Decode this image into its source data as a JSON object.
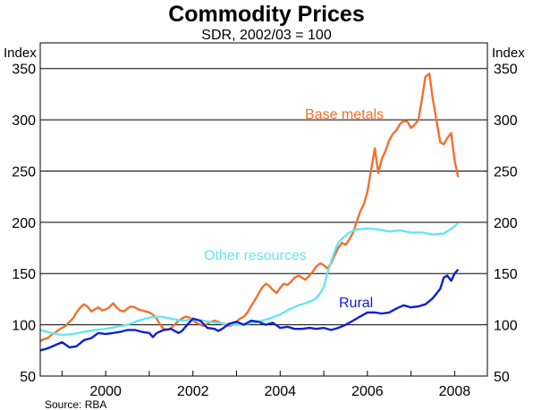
{
  "chart_data": {
    "type": "line",
    "title": "Commodity Prices",
    "subtitle": "SDR, 2002/03 = 100",
    "ylabel_left": "Index",
    "ylabel_right": "Index",
    "source": "Source: RBA",
    "xlim": [
      1998.5,
      2008.75
    ],
    "ylim": [
      50,
      375
    ],
    "y_ticks": [
      50,
      100,
      150,
      200,
      250,
      300,
      350
    ],
    "y_tick_labels": [
      "50",
      "100",
      "150",
      "200",
      "250",
      "300",
      "350"
    ],
    "x_ticks": [
      2000,
      2002,
      2004,
      2006,
      2008
    ],
    "x_tick_labels": [
      "2000",
      "2002",
      "2004",
      "2006",
      "2008"
    ],
    "gridlines": "horizontal",
    "series": [
      {
        "name": "Base metals",
        "color": "#f07030",
        "x": [
          1998.5,
          1998.58,
          1998.67,
          1998.75,
          1998.83,
          1998.92,
          1999.0,
          1999.08,
          1999.17,
          1999.25,
          1999.33,
          1999.42,
          1999.5,
          1999.58,
          1999.67,
          1999.75,
          1999.83,
          1999.92,
          2000.0,
          2000.08,
          2000.17,
          2000.25,
          2000.33,
          2000.42,
          2000.5,
          2000.58,
          2000.67,
          2000.75,
          2000.83,
          2000.92,
          2001.0,
          2001.08,
          2001.17,
          2001.25,
          2001.33,
          2001.42,
          2001.5,
          2001.58,
          2001.67,
          2001.75,
          2001.83,
          2001.92,
          2002.0,
          2002.08,
          2002.17,
          2002.25,
          2002.33,
          2002.42,
          2002.5,
          2002.58,
          2002.67,
          2002.75,
          2002.83,
          2002.92,
          2003.0,
          2003.08,
          2003.17,
          2003.25,
          2003.33,
          2003.42,
          2003.5,
          2003.58,
          2003.67,
          2003.75,
          2003.83,
          2003.92,
          2004.0,
          2004.08,
          2004.17,
          2004.25,
          2004.33,
          2004.42,
          2004.5,
          2004.58,
          2004.67,
          2004.75,
          2004.83,
          2004.92,
          2005.0,
          2005.08,
          2005.17,
          2005.25,
          2005.33,
          2005.42,
          2005.5,
          2005.58,
          2005.67,
          2005.75,
          2005.83,
          2005.92,
          2006.0,
          2006.08,
          2006.17,
          2006.25,
          2006.33,
          2006.42,
          2006.5,
          2006.58,
          2006.67,
          2006.75,
          2006.83,
          2006.92,
          2007.0,
          2007.08,
          2007.17,
          2007.25,
          2007.33,
          2007.42,
          2007.5,
          2007.58,
          2007.67,
          2007.75,
          2007.83,
          2007.92,
          2008.0,
          2008.08
        ],
        "values": [
          84,
          86,
          87,
          90,
          92,
          95,
          97,
          99,
          103,
          106,
          112,
          117,
          120,
          118,
          113,
          115,
          117,
          114,
          115,
          117,
          121,
          117,
          114,
          113,
          116,
          118,
          117,
          115,
          114,
          113,
          112,
          110,
          106,
          100,
          96,
          95,
          97,
          100,
          104,
          106,
          108,
          107,
          104,
          102,
          100,
          99,
          101,
          103,
          104,
          103,
          101,
          100,
          99,
          100,
          103,
          106,
          108,
          112,
          118,
          124,
          130,
          136,
          140,
          138,
          134,
          131,
          136,
          140,
          139,
          142,
          146,
          148,
          146,
          144,
          148,
          152,
          157,
          160,
          158,
          155,
          160,
          168,
          175,
          180,
          178,
          183,
          190,
          200,
          210,
          218,
          230,
          250,
          272,
          248,
          262,
          270,
          280,
          286,
          290,
          296,
          299,
          298,
          292,
          295,
          300,
          320,
          342,
          345,
          320,
          300,
          278,
          276,
          282,
          287,
          260,
          244
        ]
      },
      {
        "name": "Other resources",
        "color": "#66e6f0",
        "x": [
          1998.5,
          1998.75,
          1999.0,
          1999.25,
          1999.5,
          1999.75,
          2000.0,
          2000.25,
          2000.5,
          2000.75,
          2001.0,
          2001.25,
          2001.5,
          2001.75,
          2002.0,
          2002.25,
          2002.5,
          2002.75,
          2003.0,
          2003.25,
          2003.5,
          2003.75,
          2004.0,
          2004.25,
          2004.42,
          2004.58,
          2004.75,
          2004.83,
          2004.92,
          2005.0,
          2005.08,
          2005.17,
          2005.25,
          2005.33,
          2005.42,
          2005.58,
          2005.75,
          2006.0,
          2006.25,
          2006.5,
          2006.75,
          2007.0,
          2007.25,
          2007.5,
          2007.75,
          2008.0,
          2008.08
        ],
        "values": [
          95,
          92,
          90,
          91,
          93,
          95,
          96,
          98,
          100,
          104,
          107,
          108,
          106,
          104,
          105,
          104,
          102,
          101,
          100,
          101,
          103,
          106,
          110,
          116,
          119,
          121,
          124,
          126,
          131,
          137,
          150,
          162,
          172,
          180,
          184,
          190,
          193,
          194,
          193,
          191,
          192,
          190,
          190,
          188,
          189,
          196,
          199
        ]
      },
      {
        "name": "Rural",
        "color": "#1020cc",
        "x": [
          1998.5,
          1998.67,
          1998.83,
          1999.0,
          1999.17,
          1999.33,
          1999.5,
          1999.67,
          1999.83,
          2000.0,
          2000.17,
          2000.33,
          2000.5,
          2000.67,
          2000.83,
          2001.0,
          2001.08,
          2001.17,
          2001.33,
          2001.5,
          2001.67,
          2001.75,
          2001.83,
          2002.0,
          2002.17,
          2002.33,
          2002.5,
          2002.58,
          2002.67,
          2002.83,
          2003.0,
          2003.17,
          2003.33,
          2003.5,
          2003.67,
          2003.83,
          2004.0,
          2004.17,
          2004.33,
          2004.5,
          2004.67,
          2004.83,
          2005.0,
          2005.17,
          2005.33,
          2005.5,
          2005.67,
          2005.83,
          2006.0,
          2006.17,
          2006.33,
          2006.5,
          2006.67,
          2006.83,
          2007.0,
          2007.17,
          2007.33,
          2007.5,
          2007.67,
          2007.75,
          2007.83,
          2007.92,
          2008.0,
          2008.08
        ],
        "values": [
          75,
          77,
          80,
          83,
          78,
          79,
          85,
          87,
          92,
          91,
          92,
          93,
          95,
          95,
          93,
          92,
          88,
          92,
          95,
          96,
          92,
          94,
          98,
          106,
          104,
          97,
          96,
          94,
          96,
          101,
          103,
          100,
          104,
          103,
          100,
          102,
          97,
          98,
          96,
          96,
          97,
          96,
          97,
          95,
          97,
          100,
          104,
          108,
          112,
          112,
          111,
          112,
          116,
          119,
          117,
          118,
          120,
          126,
          135,
          146,
          148,
          143,
          150,
          154
        ]
      }
    ]
  }
}
